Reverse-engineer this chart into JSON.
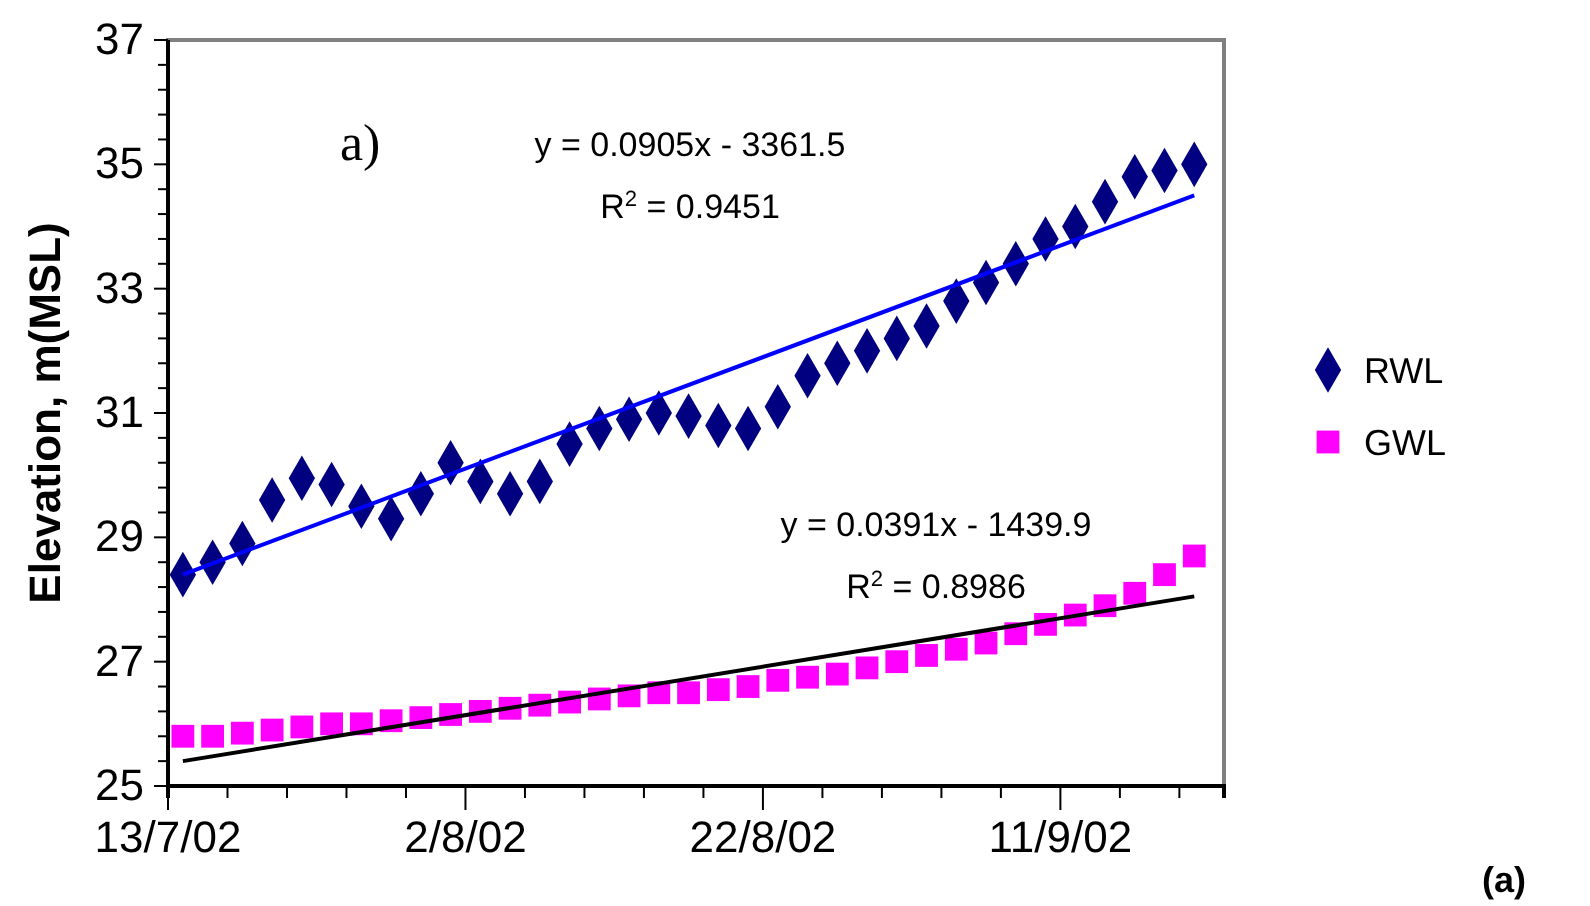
{
  "chart_data": {
    "type": "scatter",
    "ylabel": "Elevation, m(MSL)",
    "x": [
      "--07-14",
      "--07-16",
      "--07-18",
      "--07-20",
      "--07-22",
      "--07-24",
      "--07-26",
      "--07-28",
      "--07-30",
      "--08-01",
      "--08-03",
      "--08-05",
      "--08-07",
      "--08-09",
      "--08-11",
      "--08-13",
      "--08-15",
      "--08-17",
      "--08-19",
      "--08-21",
      "--08-23",
      "--08-25",
      "--08-27",
      "--08-29",
      "--08-31",
      "--09-02",
      "--09-04",
      "--09-06",
      "--09-08",
      "--09-10",
      "--09-12",
      "--09-14",
      "--09-16",
      "--09-18",
      "--09-20"
    ],
    "series": [
      {
        "name": "RWL",
        "marker": "diamond",
        "color": "#000080",
        "values": [
          28.4,
          28.6,
          28.9,
          29.6,
          29.95,
          29.85,
          29.5,
          29.3,
          29.7,
          30.2,
          29.9,
          29.7,
          29.9,
          30.5,
          30.75,
          30.9,
          31.0,
          30.95,
          30.8,
          30.75,
          31.1,
          31.6,
          31.8,
          32.0,
          32.2,
          32.4,
          32.8,
          33.1,
          33.4,
          33.8,
          34.0,
          34.4,
          34.8,
          34.9,
          35.0
        ]
      },
      {
        "name": "GWL",
        "marker": "square",
        "color": "#ff00ff",
        "values": [
          25.8,
          25.8,
          25.85,
          25.9,
          25.95,
          26.0,
          26.0,
          26.05,
          26.1,
          26.15,
          26.2,
          26.25,
          26.3,
          26.35,
          26.4,
          26.45,
          26.5,
          26.5,
          26.55,
          26.6,
          26.7,
          26.75,
          26.8,
          26.9,
          27.0,
          27.1,
          27.2,
          27.3,
          27.45,
          27.6,
          27.75,
          27.9,
          28.1,
          28.4,
          28.7
        ]
      },
      {
        "type": "line",
        "color": "#0000ff",
        "x": [
          "--07-14",
          "--09-20"
        ],
        "values": [
          28.4,
          34.5
        ]
      },
      {
        "type": "line",
        "color": "#000000",
        "x": [
          "--07-14",
          "--09-20"
        ],
        "values": [
          25.4,
          28.05
        ]
      }
    ],
    "xlim": [
      "--07-13",
      "--09-22"
    ],
    "xticks": [
      {
        "value": "--07-13",
        "label": "13/7/02"
      },
      {
        "value": "--07-17",
        "label": null
      },
      {
        "value": "--07-21",
        "label": null
      },
      {
        "value": "--07-25",
        "label": null
      },
      {
        "value": "--07-29",
        "label": null
      },
      {
        "value": "--08-02",
        "label": "2/8/02"
      },
      {
        "value": "--08-06",
        "label": null
      },
      {
        "value": "--08-10",
        "label": null
      },
      {
        "value": "--08-14",
        "label": null
      },
      {
        "value": "--08-18",
        "label": null
      },
      {
        "value": "--08-22",
        "label": "22/8/02"
      },
      {
        "value": "--08-26",
        "label": null
      },
      {
        "value": "--08-30",
        "label": null
      },
      {
        "value": "--09-03",
        "label": null
      },
      {
        "value": "--09-07",
        "label": null
      },
      {
        "value": "--09-11",
        "label": "11/9/02"
      },
      {
        "value": "--09-15",
        "label": null
      },
      {
        "value": "--09-19",
        "label": null
      }
    ],
    "ylim": [
      25,
      37
    ],
    "yticks": [
      25,
      27,
      29,
      31,
      33,
      35,
      37
    ],
    "grid": false,
    "legend": "right",
    "annotations": [
      "a)",
      "y = 0.0905x - 3361.5",
      "R$^{2}$ = 0.9451",
      "y = 0.0391x - 1439.9",
      "R$^{2}$ = 0.8986",
      "(a)"
    ]
  }
}
